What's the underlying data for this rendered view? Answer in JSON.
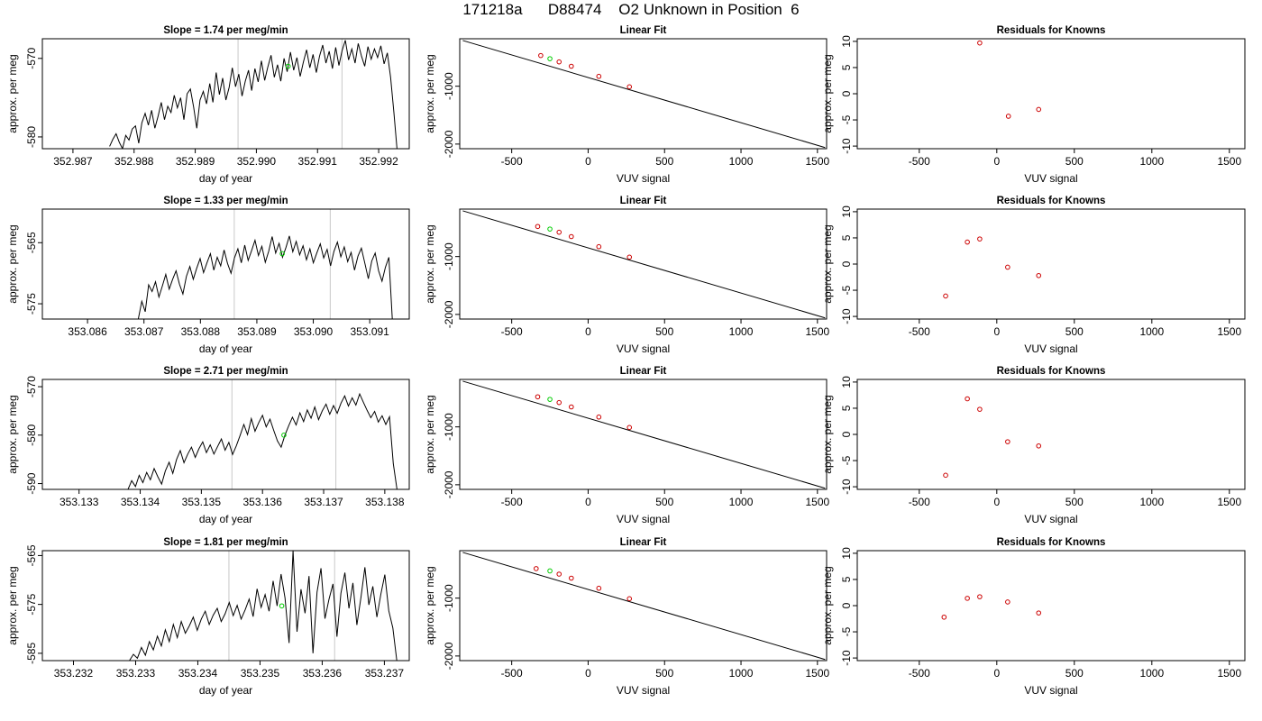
{
  "figure": {
    "title": "171218a      D88474    O2 Unknown in Position  6"
  },
  "chart_data": [
    {
      "type": "line",
      "title": "Slope =  1.74  per meg/min",
      "xlabel": "day of year",
      "ylabel": "approx. per meg",
      "xlim": [
        352.9865,
        352.9925
      ],
      "ylim": [
        -581.5,
        -567.5
      ],
      "xticks": [
        352.987,
        352.988,
        352.989,
        352.99,
        352.991,
        352.992
      ],
      "xtick_labels": [
        "352.987",
        "352.988",
        "352.989",
        "352.990",
        "352.991",
        "352.992"
      ],
      "xtick_decimals": 3,
      "yticks": [
        -580,
        -570
      ],
      "ytick_labels": [
        "-580",
        "-570"
      ],
      "vlines": [
        352.9897,
        352.9914
      ],
      "vline_color": "#c8c8c8",
      "t_start": 352.9876,
      "t_end": 352.9923,
      "y_points": [
        -581.2,
        -580.3,
        -579.6,
        -580.7,
        -581.5,
        -579.8,
        -580.4,
        -579.0,
        -578.6,
        -580.8,
        -578.2,
        -577.0,
        -578.5,
        -576.6,
        -578.9,
        -577.4,
        -575.6,
        -577.8,
        -576.1,
        -576.9,
        -574.7,
        -576.3,
        -575.0,
        -577.8,
        -574.5,
        -573.9,
        -576.2,
        -578.9,
        -575.3,
        -574.2,
        -575.8,
        -573.2,
        -575.6,
        -571.8,
        -574.6,
        -572.5,
        -575.3,
        -573.7,
        -571.2,
        -573.6,
        -572.0,
        -574.8,
        -572.9,
        -571.5,
        -574.1,
        -571.3,
        -573.0,
        -570.3,
        -572.8,
        -571.1,
        -569.6,
        -572.4,
        -570.8,
        -572.9,
        -570.0,
        -571.7,
        -569.2,
        -571.5,
        -569.9,
        -572.3,
        -570.5,
        -568.9,
        -571.2,
        -569.5,
        -571.8,
        -569.7,
        -568.3,
        -570.6,
        -569.1,
        -571.3,
        -568.6,
        -570.9,
        -569.0,
        -567.7,
        -570.2,
        -568.8,
        -570.6,
        -568.1,
        -569.7,
        -571.0,
        -568.5,
        -570.1,
        -568.8,
        -569.9,
        -568.4,
        -570.7,
        -569.3,
        -572.4,
        -576.8,
        -581.5
      ],
      "highlight_points": [
        {
          "x": 352.99052,
          "y": -571.0,
          "color": "#00cc00"
        }
      ]
    },
    {
      "type": "scatter",
      "title": "Linear Fit",
      "xlabel": "VUV signal",
      "ylabel": "approx. per meg",
      "xlim": [
        -840,
        1560
      ],
      "ylim": [
        -2080,
        -180
      ],
      "xticks": [
        -500,
        0,
        500,
        1000,
        1500
      ],
      "xtick_labels": [
        "-500",
        "0",
        "500",
        "1000",
        "1500"
      ],
      "yticks": [
        -2000,
        -1000
      ],
      "ytick_labels": [
        "-2000",
        "-1000"
      ],
      "fit_line": {
        "x": [
          -820,
          1550
        ],
        "y": [
          -210,
          -2060
        ]
      },
      "points": [
        {
          "x": -310,
          "y": -470
        },
        {
          "x": -190,
          "y": -580
        },
        {
          "x": -110,
          "y": -655
        },
        {
          "x": 70,
          "y": -830
        },
        {
          "x": 270,
          "y": -1010
        }
      ],
      "point_color": "#cc0000",
      "highlight_points": [
        {
          "x": -250,
          "y": -525,
          "color": "#00cc00"
        }
      ]
    },
    {
      "type": "scatter",
      "title": "Residuals for Knowns",
      "xlabel": "VUV signal",
      "ylabel": "approx. per meg",
      "xlim": [
        -900,
        1600
      ],
      "ylim": [
        -10.5,
        10.5
      ],
      "xticks": [
        -500,
        0,
        500,
        1000,
        1500
      ],
      "xtick_labels": [
        "-500",
        "0",
        "500",
        "1000",
        "1500"
      ],
      "yticks": [
        -10,
        -5,
        0,
        5,
        10
      ],
      "ytick_labels": [
        "-10",
        "-5",
        "0",
        "5",
        "10"
      ],
      "points": [
        {
          "x": -110,
          "y": 9.7
        },
        {
          "x": 75,
          "y": -4.3
        },
        {
          "x": 270,
          "y": -3.0
        }
      ],
      "point_color": "#cc0000"
    },
    {
      "type": "line",
      "title": "Slope =  1.33  per meg/min",
      "xlabel": "day of year",
      "ylabel": "approx. per meg",
      "xlim": [
        353.0852,
        353.0917
      ],
      "ylim": [
        -577.5,
        -559.5
      ],
      "xticks": [
        353.086,
        353.087,
        353.088,
        353.089,
        353.09,
        353.091
      ],
      "xtick_labels": [
        "353.086",
        "353.087",
        "353.088",
        "353.089",
        "353.090",
        "353.091"
      ],
      "xtick_decimals": 3,
      "yticks": [
        -575,
        -565
      ],
      "ytick_labels": [
        "-575",
        "-565"
      ],
      "vlines": [
        353.0886,
        353.0903
      ],
      "vline_color": "#c8c8c8",
      "t_start": 353.0869,
      "t_end": 353.0914,
      "y_points": [
        -577.5,
        -574.6,
        -576.3,
        -571.9,
        -573.0,
        -571.4,
        -573.9,
        -572.1,
        -570.2,
        -572.6,
        -571.0,
        -569.6,
        -571.8,
        -573.4,
        -570.5,
        -568.9,
        -571.0,
        -569.2,
        -567.6,
        -569.9,
        -568.3,
        -566.8,
        -569.5,
        -567.4,
        -568.8,
        -566.2,
        -568.4,
        -570.0,
        -567.5,
        -566.0,
        -568.3,
        -565.4,
        -567.9,
        -566.3,
        -564.6,
        -567.1,
        -565.6,
        -568.2,
        -566.4,
        -564.0,
        -566.7,
        -565.1,
        -567.4,
        -565.8,
        -563.9,
        -566.5,
        -564.8,
        -567.0,
        -565.5,
        -567.8,
        -566.0,
        -568.3,
        -566.7,
        -565.2,
        -567.5,
        -566.1,
        -568.8,
        -566.4,
        -564.9,
        -567.3,
        -565.7,
        -568.1,
        -566.6,
        -569.5,
        -567.2,
        -565.9,
        -568.4,
        -570.9,
        -568.0,
        -566.7,
        -569.6,
        -571.3,
        -569.0,
        -567.4,
        -577.5
      ],
      "highlight_points": [
        {
          "x": 353.08945,
          "y": -566.8,
          "color": "#00cc00"
        }
      ]
    },
    {
      "type": "scatter",
      "title": "Linear Fit",
      "xlabel": "VUV signal",
      "ylabel": "approx. per meg",
      "xlim": [
        -840,
        1560
      ],
      "ylim": [
        -2080,
        -180
      ],
      "xticks": [
        -500,
        0,
        500,
        1000,
        1500
      ],
      "xtick_labels": [
        "-500",
        "0",
        "500",
        "1000",
        "1500"
      ],
      "yticks": [
        -2000,
        -1000
      ],
      "ytick_labels": [
        "-2000",
        "-1000"
      ],
      "fit_line": {
        "x": [
          -820,
          1550
        ],
        "y": [
          -210,
          -2060
        ]
      },
      "points": [
        {
          "x": -330,
          "y": -480
        },
        {
          "x": -190,
          "y": -580
        },
        {
          "x": -110,
          "y": -655
        },
        {
          "x": 70,
          "y": -830
        },
        {
          "x": 270,
          "y": -1010
        }
      ],
      "point_color": "#cc0000",
      "highlight_points": [
        {
          "x": -250,
          "y": -525,
          "color": "#00cc00"
        }
      ]
    },
    {
      "type": "scatter",
      "title": "Residuals for Knowns",
      "xlabel": "VUV signal",
      "ylabel": "approx. per meg",
      "xlim": [
        -900,
        1600
      ],
      "ylim": [
        -10.5,
        10.5
      ],
      "xticks": [
        -500,
        0,
        500,
        1000,
        1500
      ],
      "xtick_labels": [
        "-500",
        "0",
        "500",
        "1000",
        "1500"
      ],
      "yticks": [
        -10,
        -5,
        0,
        5,
        10
      ],
      "ytick_labels": [
        "-10",
        "-5",
        "0",
        "5",
        "10"
      ],
      "points": [
        {
          "x": -330,
          "y": -6.1
        },
        {
          "x": -190,
          "y": 4.2
        },
        {
          "x": -110,
          "y": 4.8
        },
        {
          "x": 70,
          "y": -0.6
        },
        {
          "x": 270,
          "y": -2.2
        }
      ],
      "point_color": "#cc0000"
    },
    {
      "type": "line",
      "title": "Slope =  2.71  per meg/min",
      "xlabel": "day of year",
      "ylabel": "approx. per meg",
      "xlim": [
        353.1324,
        353.1384
      ],
      "ylim": [
        -591.2,
        -568.5
      ],
      "xticks": [
        353.133,
        353.134,
        353.135,
        353.136,
        353.137,
        353.138
      ],
      "xtick_labels": [
        "353.133",
        "353.134",
        "353.135",
        "353.136",
        "353.137",
        "353.138"
      ],
      "xtick_decimals": 3,
      "yticks": [
        -590,
        -580,
        -570
      ],
      "ytick_labels": [
        "-590",
        "-580",
        "-570"
      ],
      "vlines": [
        353.1355,
        353.1372
      ],
      "vline_color": "#c8c8c8",
      "t_start": 353.1338,
      "t_end": 353.1382,
      "y_points": [
        -591.2,
        -589.4,
        -590.6,
        -588.3,
        -589.8,
        -587.7,
        -589.2,
        -586.9,
        -588.6,
        -590.1,
        -587.4,
        -585.6,
        -587.9,
        -585.0,
        -583.2,
        -585.7,
        -583.9,
        -582.5,
        -584.6,
        -582.8,
        -581.4,
        -583.6,
        -582.0,
        -583.9,
        -582.3,
        -580.8,
        -583.1,
        -581.5,
        -584.0,
        -582.2,
        -580.1,
        -577.8,
        -579.9,
        -576.6,
        -579.2,
        -577.4,
        -575.9,
        -578.3,
        -576.7,
        -579.0,
        -581.2,
        -582.5,
        -580.0,
        -578.1,
        -576.3,
        -577.9,
        -575.4,
        -577.2,
        -574.8,
        -576.5,
        -574.2,
        -576.8,
        -575.0,
        -573.6,
        -575.7,
        -573.9,
        -575.5,
        -573.4,
        -571.9,
        -574.0,
        -572.3,
        -573.8,
        -571.5,
        -573.2,
        -574.9,
        -576.4,
        -575.1,
        -577.3,
        -576.0,
        -577.8,
        -576.2,
        -585.9,
        -591.2
      ],
      "highlight_points": [
        {
          "x": 353.13635,
          "y": -580.0,
          "color": "#00cc00"
        }
      ]
    },
    {
      "type": "scatter",
      "title": "Linear Fit",
      "xlabel": "VUV signal",
      "ylabel": "approx. per meg",
      "xlim": [
        -840,
        1560
      ],
      "ylim": [
        -2080,
        -180
      ],
      "xticks": [
        -500,
        0,
        500,
        1000,
        1500
      ],
      "xtick_labels": [
        "-500",
        "0",
        "500",
        "1000",
        "1500"
      ],
      "yticks": [
        -2000,
        -1000
      ],
      "ytick_labels": [
        "-2000",
        "-1000"
      ],
      "fit_line": {
        "x": [
          -820,
          1550
        ],
        "y": [
          -210,
          -2060
        ]
      },
      "points": [
        {
          "x": -330,
          "y": -480
        },
        {
          "x": -190,
          "y": -580
        },
        {
          "x": -110,
          "y": -655
        },
        {
          "x": 70,
          "y": -830
        },
        {
          "x": 270,
          "y": -1010
        }
      ],
      "point_color": "#cc0000",
      "highlight_points": [
        {
          "x": -250,
          "y": -525,
          "color": "#00cc00"
        }
      ]
    },
    {
      "type": "scatter",
      "title": "Residuals for Knowns",
      "xlabel": "VUV signal",
      "ylabel": "approx. per meg",
      "xlim": [
        -900,
        1600
      ],
      "ylim": [
        -10.5,
        10.5
      ],
      "xticks": [
        -500,
        0,
        500,
        1000,
        1500
      ],
      "xtick_labels": [
        "-500",
        "0",
        "500",
        "1000",
        "1500"
      ],
      "yticks": [
        -10,
        -5,
        0,
        5,
        10
      ],
      "ytick_labels": [
        "-10",
        "-5",
        "0",
        "5",
        "10"
      ],
      "points": [
        {
          "x": -330,
          "y": -7.8
        },
        {
          "x": -190,
          "y": 6.8
        },
        {
          "x": -110,
          "y": 4.8
        },
        {
          "x": 70,
          "y": -1.4
        },
        {
          "x": 270,
          "y": -2.2
        }
      ],
      "point_color": "#cc0000"
    },
    {
      "type": "line",
      "title": "Slope =  1.81  per meg/min",
      "xlabel": "day of year",
      "ylabel": "approx. per meg",
      "xlim": [
        353.2315,
        353.2374
      ],
      "ylim": [
        -586.5,
        -564.0
      ],
      "xticks": [
        353.232,
        353.233,
        353.234,
        353.235,
        353.236,
        353.237
      ],
      "xtick_labels": [
        "353.232",
        "353.233",
        "353.234",
        "353.235",
        "353.236",
        "353.237"
      ],
      "xtick_decimals": 3,
      "yticks": [
        -585,
        -575,
        -565
      ],
      "ytick_labels": [
        "-585",
        "-575",
        "-565"
      ],
      "vlines": [
        353.2345,
        353.2362
      ],
      "vline_color": "#c8c8c8",
      "t_start": 353.2329,
      "t_end": 353.2372,
      "y_points": [
        -586.5,
        -585.2,
        -586.0,
        -583.8,
        -585.4,
        -582.6,
        -584.3,
        -581.5,
        -583.5,
        -580.2,
        -582.6,
        -579.1,
        -581.8,
        -578.5,
        -580.9,
        -579.4,
        -577.6,
        -580.3,
        -578.0,
        -576.4,
        -579.1,
        -577.2,
        -575.8,
        -578.5,
        -576.9,
        -574.6,
        -577.3,
        -575.2,
        -578.0,
        -576.1,
        -573.9,
        -577.5,
        -571.8,
        -575.6,
        -573.0,
        -576.4,
        -570.2,
        -575.3,
        -568.8,
        -573.7,
        -582.9,
        -564.0,
        -580.6,
        -571.9,
        -576.8,
        -569.2,
        -585.0,
        -572.5,
        -567.6,
        -577.9,
        -574.0,
        -570.8,
        -581.6,
        -572.7,
        -568.5,
        -575.8,
        -570.6,
        -579.2,
        -573.6,
        -567.4,
        -575.1,
        -571.3,
        -577.6,
        -572.9,
        -568.9,
        -576.3,
        -579.8,
        -586.5
      ],
      "highlight_points": [
        {
          "x": 353.23535,
          "y": -575.3,
          "color": "#00cc00"
        }
      ]
    },
    {
      "type": "scatter",
      "title": "Linear Fit",
      "xlabel": "VUV signal",
      "ylabel": "approx. per meg",
      "xlim": [
        -840,
        1560
      ],
      "ylim": [
        -2080,
        -180
      ],
      "xticks": [
        -500,
        0,
        500,
        1000,
        1500
      ],
      "xtick_labels": [
        "-500",
        "0",
        "500",
        "1000",
        "1500"
      ],
      "yticks": [
        -2000,
        -1000
      ],
      "ytick_labels": [
        "-2000",
        "-1000"
      ],
      "fit_line": {
        "x": [
          -820,
          1550
        ],
        "y": [
          -210,
          -2060
        ]
      },
      "points": [
        {
          "x": -340,
          "y": -490
        },
        {
          "x": -190,
          "y": -585
        },
        {
          "x": -110,
          "y": -655
        },
        {
          "x": 70,
          "y": -830
        },
        {
          "x": 270,
          "y": -1010
        }
      ],
      "point_color": "#cc0000",
      "highlight_points": [
        {
          "x": -250,
          "y": -530,
          "color": "#00cc00"
        }
      ]
    },
    {
      "type": "scatter",
      "title": "Residuals for Knowns",
      "xlabel": "VUV signal",
      "ylabel": "approx. per meg",
      "xlim": [
        -900,
        1600
      ],
      "ylim": [
        -10.5,
        10.5
      ],
      "xticks": [
        -500,
        0,
        500,
        1000,
        1500
      ],
      "xtick_labels": [
        "-500",
        "0",
        "500",
        "1000",
        "1500"
      ],
      "yticks": [
        -10,
        -5,
        0,
        5,
        10
      ],
      "ytick_labels": [
        "-10",
        "-5",
        "0",
        "5",
        "10"
      ],
      "points": [
        {
          "x": -340,
          "y": -2.2
        },
        {
          "x": -190,
          "y": 1.4
        },
        {
          "x": -110,
          "y": 1.7
        },
        {
          "x": 70,
          "y": 0.7
        },
        {
          "x": 270,
          "y": -1.4
        }
      ],
      "point_color": "#cc0000"
    }
  ]
}
